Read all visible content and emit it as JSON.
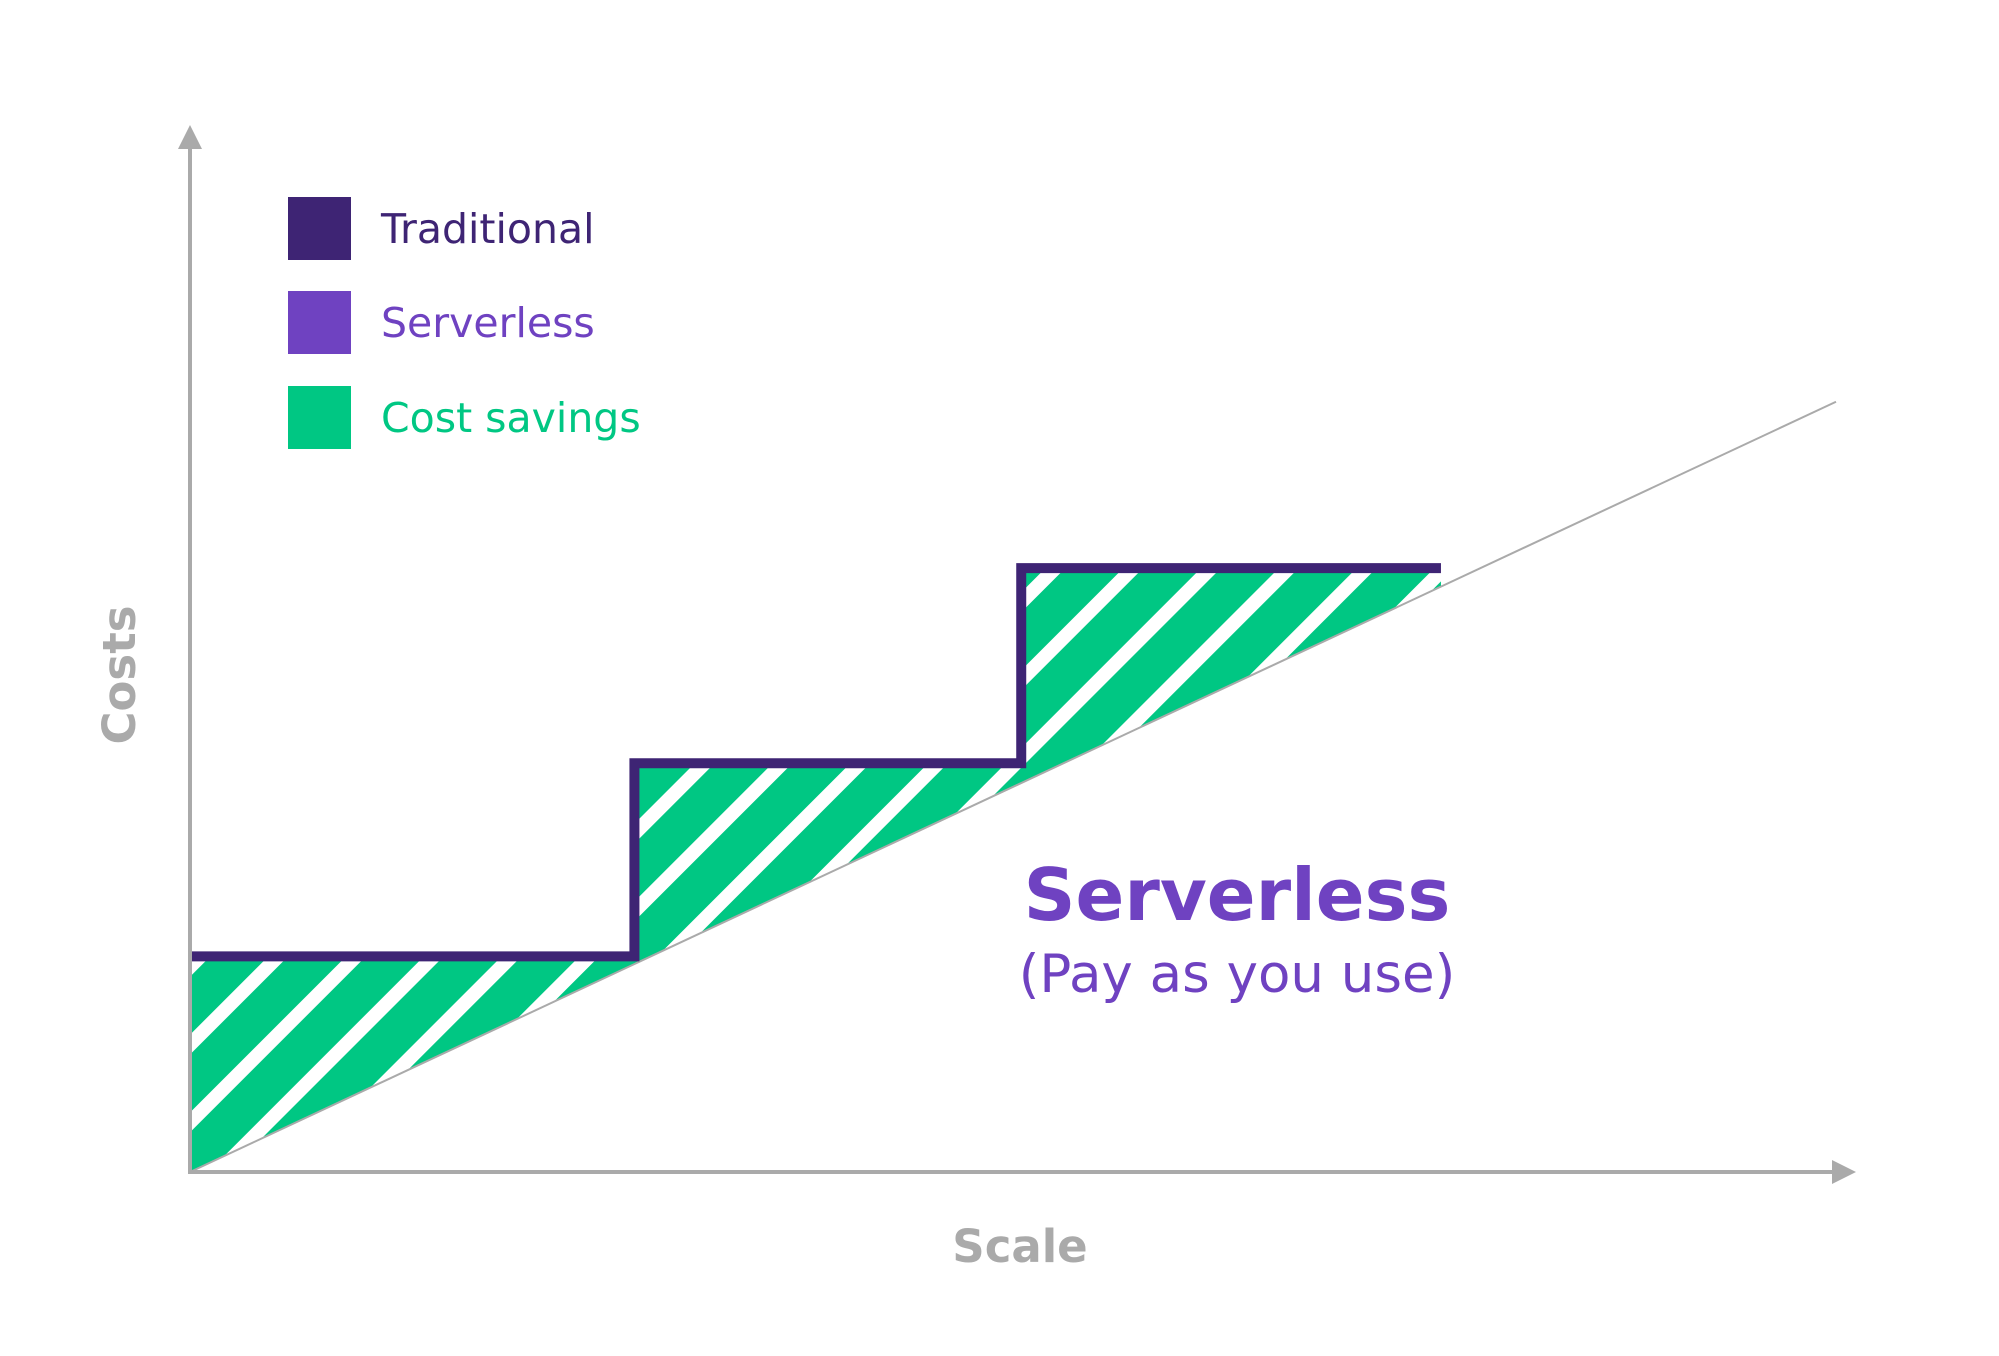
{
  "chart_data": {
    "type": "line",
    "title": "",
    "xlabel": "Scale",
    "ylabel": "Costs",
    "xlim": [
      0,
      10
    ],
    "ylim": [
      0,
      10
    ],
    "grid": false,
    "legend_position": "top-left",
    "series": [
      {
        "name": "Traditional",
        "color": "#3e2474",
        "shape": "step",
        "x": [
          0,
          2.7,
          2.7,
          5.05,
          5.05,
          7.6
        ],
        "y": [
          2.1,
          2.1,
          3.98,
          3.98,
          5.88,
          5.88
        ]
      },
      {
        "name": "Serverless",
        "color": "#6f42c1",
        "shape": "linear",
        "x": [
          0,
          10
        ],
        "y": [
          0,
          7.5
        ]
      }
    ],
    "area": {
      "name": "Cost savings",
      "color": "#00c783",
      "pattern": "diagonal-stripes",
      "between": [
        "Traditional",
        "Serverless"
      ]
    },
    "legend": [
      {
        "label": "Traditional",
        "color": "#3e2474"
      },
      {
        "label": "Serverless",
        "color": "#6f42c1"
      },
      {
        "label": "Cost savings",
        "color": "#00c783"
      }
    ],
    "annotations": [
      {
        "text": "Serverless",
        "color": "#6f42c1"
      },
      {
        "text": "(Pay as you use)",
        "color": "#6f42c1"
      }
    ]
  },
  "colors": {
    "axis": "#aaaaaa",
    "trend_line": "#aaaaaa",
    "stripe_gap": "#ffffff"
  }
}
